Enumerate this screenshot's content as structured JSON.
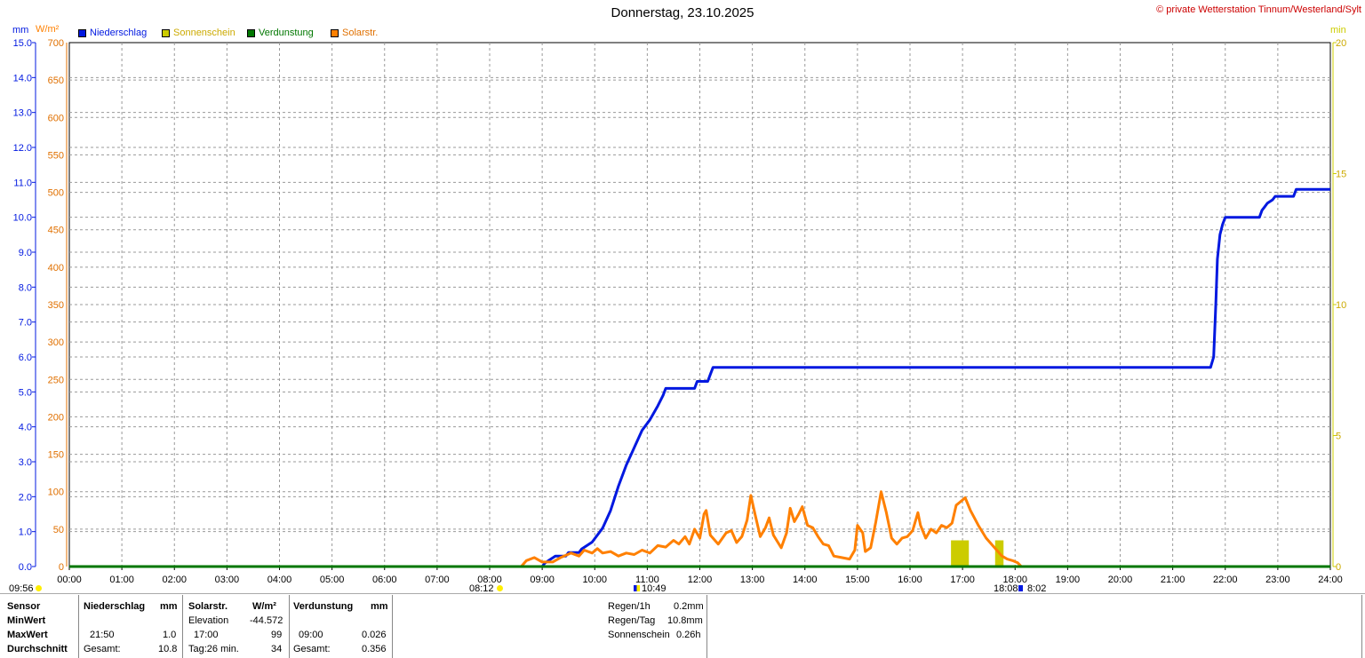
{
  "title": "Donnerstag, 23.10.2025",
  "copyright": "© private Wetterstation Tinnum/Westerland/Sylt",
  "units": {
    "left1": "mm",
    "left2": "W/m²",
    "right": "min"
  },
  "legend": [
    {
      "label": "Niederschlag",
      "color": "#0018e0"
    },
    {
      "label": "Sonnenschein",
      "color": "#cccc00"
    },
    {
      "label": "Verdunstung",
      "color": "#007700"
    },
    {
      "label": "Solarstr.",
      "color": "#ff8000"
    }
  ],
  "markers": {
    "left_time": "09:56",
    "sunrise": "08:12",
    "solar_noon": "10:49",
    "sunset": "18:08",
    "daylength": "8:02"
  },
  "chart_data": {
    "type": "line",
    "title": "Donnerstag, 23.10.2025",
    "x_ticks": [
      "00:00",
      "01:00",
      "02:00",
      "03:00",
      "04:00",
      "05:00",
      "06:00",
      "07:00",
      "08:00",
      "09:00",
      "10:00",
      "11:00",
      "12:00",
      "13:00",
      "14:00",
      "15:00",
      "16:00",
      "17:00",
      "18:00",
      "19:00",
      "20:00",
      "21:00",
      "22:00",
      "23:00",
      "24:00"
    ],
    "xlim_hours": [
      0,
      24
    ],
    "y_left_mm_ticks": [
      "0.0",
      "1.0",
      "2.0",
      "3.0",
      "4.0",
      "5.0",
      "6.0",
      "7.0",
      "8.0",
      "9.0",
      "10.0",
      "11.0",
      "12.0",
      "13.0",
      "14.0",
      "15.0"
    ],
    "y_left_wm2_ticks": [
      "0",
      "50",
      "100",
      "150",
      "200",
      "250",
      "300",
      "350",
      "400",
      "450",
      "500",
      "550",
      "600",
      "650",
      "700"
    ],
    "y_right_min_ticks": [
      "0",
      "5",
      "10",
      "15",
      "20"
    ],
    "ylim_mm": [
      0,
      15
    ],
    "ylim_wm2": [
      0,
      700
    ],
    "ylim_min": [
      0,
      20
    ],
    "grid": true,
    "series": [
      {
        "name": "Niederschlag",
        "color": "#0018e0",
        "axis": "mm",
        "points": [
          [
            0,
            0
          ],
          [
            9.0,
            0
          ],
          [
            9.05,
            0.1
          ],
          [
            9.15,
            0.2
          ],
          [
            9.25,
            0.3
          ],
          [
            9.45,
            0.3
          ],
          [
            9.5,
            0.4
          ],
          [
            9.7,
            0.4
          ],
          [
            9.75,
            0.5
          ],
          [
            9.85,
            0.6
          ],
          [
            9.95,
            0.7
          ],
          [
            10.05,
            0.9
          ],
          [
            10.15,
            1.1
          ],
          [
            10.3,
            1.6
          ],
          [
            10.45,
            2.3
          ],
          [
            10.6,
            2.9
          ],
          [
            10.75,
            3.4
          ],
          [
            10.9,
            3.9
          ],
          [
            11.05,
            4.2
          ],
          [
            11.2,
            4.6
          ],
          [
            11.3,
            4.9
          ],
          [
            11.35,
            5.1
          ],
          [
            11.9,
            5.1
          ],
          [
            11.95,
            5.3
          ],
          [
            12.15,
            5.3
          ],
          [
            12.2,
            5.5
          ],
          [
            12.25,
            5.7
          ],
          [
            21.72,
            5.7
          ],
          [
            21.78,
            6.0
          ],
          [
            21.82,
            7.5
          ],
          [
            21.85,
            8.8
          ],
          [
            21.9,
            9.5
          ],
          [
            21.95,
            9.8
          ],
          [
            22.0,
            10.0
          ],
          [
            22.65,
            10.0
          ],
          [
            22.7,
            10.2
          ],
          [
            22.75,
            10.3
          ],
          [
            22.8,
            10.4
          ],
          [
            22.9,
            10.5
          ],
          [
            22.95,
            10.6
          ],
          [
            23.3,
            10.6
          ],
          [
            23.35,
            10.8
          ],
          [
            24,
            10.8
          ]
        ]
      },
      {
        "name": "Solarstr.",
        "color": "#ff8000",
        "axis": "wm2",
        "points": [
          [
            8.6,
            0
          ],
          [
            8.7,
            8
          ],
          [
            8.85,
            12
          ],
          [
            9.0,
            6
          ],
          [
            9.2,
            6
          ],
          [
            9.35,
            12
          ],
          [
            9.55,
            18
          ],
          [
            9.7,
            14
          ],
          [
            9.8,
            22
          ],
          [
            9.95,
            18
          ],
          [
            10.05,
            24
          ],
          [
            10.15,
            18
          ],
          [
            10.3,
            20
          ],
          [
            10.45,
            14
          ],
          [
            10.6,
            18
          ],
          [
            10.75,
            16
          ],
          [
            10.9,
            22
          ],
          [
            11.05,
            18
          ],
          [
            11.2,
            28
          ],
          [
            11.35,
            26
          ],
          [
            11.5,
            35
          ],
          [
            11.6,
            30
          ],
          [
            11.72,
            40
          ],
          [
            11.8,
            30
          ],
          [
            11.9,
            50
          ],
          [
            12.0,
            38
          ],
          [
            12.08,
            70
          ],
          [
            12.12,
            75
          ],
          [
            12.2,
            42
          ],
          [
            12.35,
            30
          ],
          [
            12.5,
            45
          ],
          [
            12.6,
            48
          ],
          [
            12.7,
            32
          ],
          [
            12.8,
            40
          ],
          [
            12.9,
            62
          ],
          [
            12.97,
            95
          ],
          [
            13.05,
            70
          ],
          [
            13.15,
            40
          ],
          [
            13.25,
            52
          ],
          [
            13.32,
            65
          ],
          [
            13.4,
            42
          ],
          [
            13.55,
            25
          ],
          [
            13.65,
            45
          ],
          [
            13.72,
            78
          ],
          [
            13.8,
            60
          ],
          [
            13.88,
            70
          ],
          [
            13.95,
            80
          ],
          [
            14.05,
            55
          ],
          [
            14.15,
            52
          ],
          [
            14.25,
            40
          ],
          [
            14.35,
            30
          ],
          [
            14.45,
            28
          ],
          [
            14.55,
            14
          ],
          [
            14.7,
            12
          ],
          [
            14.85,
            10
          ],
          [
            14.95,
            22
          ],
          [
            15.0,
            55
          ],
          [
            15.1,
            45
          ],
          [
            15.15,
            20
          ],
          [
            15.25,
            25
          ],
          [
            15.35,
            60
          ],
          [
            15.45,
            100
          ],
          [
            15.55,
            72
          ],
          [
            15.65,
            38
          ],
          [
            15.75,
            30
          ],
          [
            15.85,
            38
          ],
          [
            15.95,
            40
          ],
          [
            16.05,
            48
          ],
          [
            16.15,
            72
          ],
          [
            16.2,
            55
          ],
          [
            16.3,
            38
          ],
          [
            16.4,
            50
          ],
          [
            16.5,
            45
          ],
          [
            16.6,
            55
          ],
          [
            16.7,
            52
          ],
          [
            16.8,
            58
          ],
          [
            16.88,
            82
          ],
          [
            16.95,
            86
          ],
          [
            17.05,
            92
          ],
          [
            17.15,
            75
          ],
          [
            17.3,
            55
          ],
          [
            17.45,
            38
          ],
          [
            17.6,
            26
          ],
          [
            17.75,
            14
          ],
          [
            17.85,
            10
          ],
          [
            17.95,
            8
          ],
          [
            18.05,
            5
          ],
          [
            18.12,
            0
          ]
        ]
      },
      {
        "name": "Sonnenschein",
        "color": "#cccc00",
        "axis": "min",
        "bars": [
          {
            "start": 16.78,
            "end": 17.12,
            "value": 1.0
          },
          {
            "start": 17.62,
            "end": 17.78,
            "value": 1.0
          }
        ]
      },
      {
        "name": "Verdunstung",
        "color": "#007700",
        "axis": "mm",
        "points": [
          [
            0,
            0
          ],
          [
            24,
            0
          ]
        ]
      }
    ]
  },
  "table": {
    "headers": {
      "sensor": "Sensor",
      "niederschlag": "Niederschlag",
      "niederschlag_unit": "mm",
      "solar": "Solarstr.",
      "solar_unit": "W/m²",
      "verdunstung": "Verdunstung",
      "verdunstung_unit": "mm"
    },
    "rows": {
      "minwert": "MinWert",
      "maxwert": "MaxWert",
      "durchschnitt": "Durchschnitt"
    },
    "niederschlag": {
      "max_time": "21:50",
      "max_val": "1.0",
      "total_label": "Gesamt:",
      "total_val": "10.8"
    },
    "solar": {
      "elev_label": "Elevation",
      "elev_val": "-44.572",
      "max_time": "17:00",
      "max_val": "99",
      "tag_label": "Tag:26 min.",
      "avg_val": "34"
    },
    "verdunstung": {
      "max_time": "09:00",
      "max_val": "0.026",
      "total_label": "Gesamt:",
      "total_val": "0.356"
    },
    "summary": {
      "regen1h_label": "Regen/1h",
      "regen1h_val": "0.2mm",
      "regentag_label": "Regen/Tag",
      "regentag_val": "10.8mm",
      "sonne_label": "Sonnenschein",
      "sonne_val": "0.26h"
    }
  }
}
